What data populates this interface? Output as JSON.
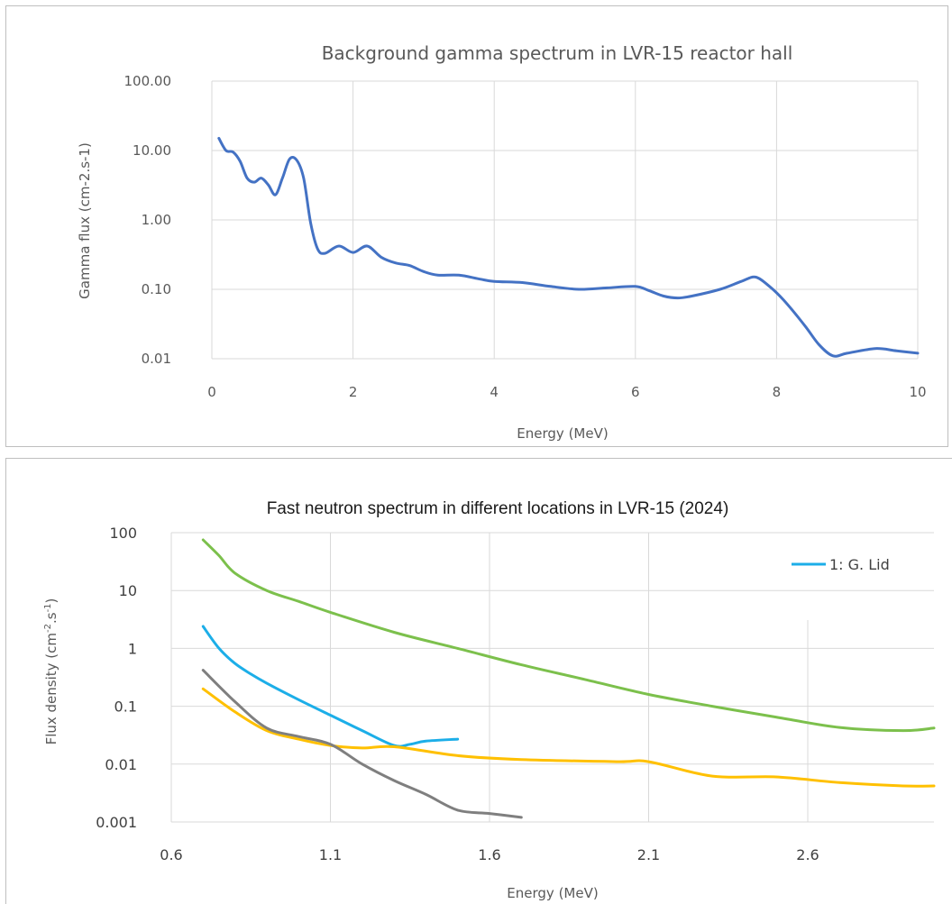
{
  "chart_data": [
    {
      "type": "line",
      "title": "Background gamma spectrum in LVR-15 reactor hall",
      "xlabel": "Energy (MeV)",
      "ylabel": "Gamma flux (cm-2.s-1)",
      "xlim": [
        0,
        10
      ],
      "ylim": [
        0.01,
        100
      ],
      "yscale": "log",
      "grid": true,
      "legend": "none",
      "x_ticks": [
        "0",
        "2",
        "4",
        "6",
        "8",
        "10"
      ],
      "y_ticks": [
        "100.00",
        "10.00",
        "1.00",
        "0.10",
        "0.01"
      ],
      "series": [
        {
          "color": "#4472C4",
          "x": [
            0.1,
            0.2,
            0.3,
            0.4,
            0.5,
            0.6,
            0.7,
            0.8,
            0.9,
            1.0,
            1.1,
            1.2,
            1.3,
            1.4,
            1.5,
            1.6,
            1.8,
            2.0,
            2.2,
            2.4,
            2.6,
            2.8,
            3.0,
            3.2,
            3.5,
            3.8,
            4.0,
            4.4,
            4.8,
            5.2,
            5.6,
            6.0,
            6.2,
            6.4,
            6.6,
            6.8,
            7.2,
            7.5,
            7.7,
            7.9,
            8.1,
            8.4,
            8.6,
            8.8,
            9.0,
            9.4,
            9.7,
            10.0
          ],
          "y": [
            15,
            10,
            9.5,
            7,
            4,
            3.5,
            4,
            3.2,
            2.3,
            4,
            7.5,
            7.3,
            4,
            0.9,
            0.38,
            0.33,
            0.42,
            0.34,
            0.42,
            0.29,
            0.24,
            0.22,
            0.18,
            0.16,
            0.16,
            0.14,
            0.13,
            0.125,
            0.11,
            0.1,
            0.105,
            0.11,
            0.095,
            0.08,
            0.075,
            0.08,
            0.1,
            0.13,
            0.15,
            0.11,
            0.07,
            0.03,
            0.016,
            0.011,
            0.012,
            0.014,
            0.013,
            0.012
          ]
        }
      ]
    },
    {
      "type": "line",
      "title": "Fast neutron spectrum in different locations in LVR-15 (2024)",
      "xlabel": "Energy (MeV)",
      "ylabel": "Flux density (cm-2.s-1)",
      "ylabel_parts": {
        "pre": "Flux density (cm",
        "sup1": "-2",
        "mid": ".s",
        "sup2": "-1",
        "post": ")"
      },
      "xlim": [
        0.6,
        3.0
      ],
      "ylim": [
        0.001,
        100
      ],
      "yscale": "log",
      "grid": true,
      "legend": "top-right",
      "x_ticks": [
        "0.6",
        "1.1",
        "1.6",
        "2.1",
        "2.6"
      ],
      "y_ticks": [
        "100",
        "10",
        "1",
        "0.1",
        "0.01",
        "0.001"
      ],
      "series": [
        {
          "name": "1: G. Lid",
          "color": "#1CAEE8",
          "x": [
            0.7,
            0.75,
            0.8,
            0.85,
            0.9,
            1.0,
            1.1,
            1.2,
            1.3,
            1.35,
            1.4,
            1.5
          ],
          "y": [
            2.4,
            1.0,
            0.55,
            0.36,
            0.25,
            0.13,
            0.07,
            0.038,
            0.021,
            0.022,
            0.025,
            0.027
          ]
        },
        {
          "color": "#7CC04C",
          "x": [
            0.7,
            0.75,
            0.8,
            0.9,
            1.0,
            1.1,
            1.3,
            1.5,
            1.7,
            1.9,
            2.1,
            2.3,
            2.5,
            2.7,
            2.9,
            3.0
          ],
          "y": [
            75,
            40,
            20,
            10,
            6.5,
            4.2,
            1.9,
            1.0,
            0.52,
            0.29,
            0.16,
            0.1,
            0.065,
            0.043,
            0.038,
            0.042
          ]
        },
        {
          "color": "#FFC000",
          "x": [
            0.7,
            0.8,
            0.9,
            1.0,
            1.1,
            1.2,
            1.3,
            1.5,
            1.7,
            2.0,
            2.1,
            2.3,
            2.5,
            2.7,
            2.9,
            3.0
          ],
          "y": [
            0.2,
            0.08,
            0.038,
            0.027,
            0.021,
            0.019,
            0.02,
            0.014,
            0.012,
            0.011,
            0.011,
            0.0062,
            0.006,
            0.0048,
            0.0042,
            0.0042
          ]
        },
        {
          "color": "#7F7F7F",
          "x": [
            0.7,
            0.8,
            0.9,
            1.0,
            1.1,
            1.2,
            1.3,
            1.4,
            1.5,
            1.6,
            1.7
          ],
          "y": [
            0.42,
            0.12,
            0.042,
            0.03,
            0.022,
            0.01,
            0.0052,
            0.003,
            0.0016,
            0.0014,
            0.0012
          ]
        }
      ]
    }
  ]
}
